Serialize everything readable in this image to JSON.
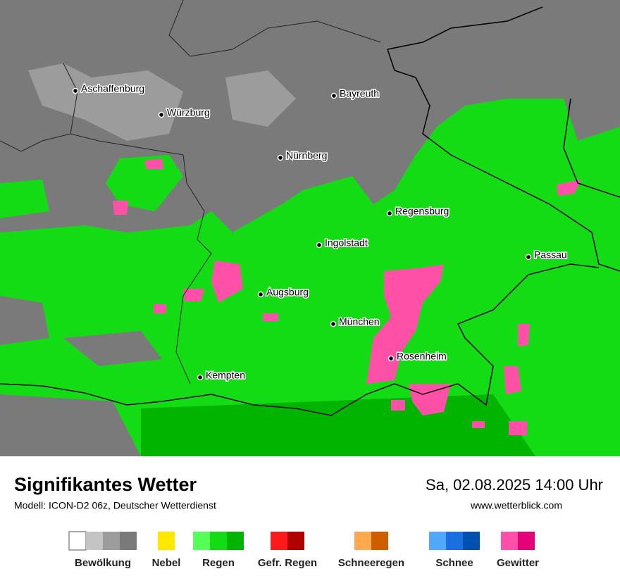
{
  "map": {
    "cities": [
      "Aschaffenburg",
      "Würzburg",
      "Bayreuth",
      "Nürnberg",
      "Regensburg",
      "Ingolstadt",
      "Passau",
      "Augsburg",
      "München",
      "Rosenheim",
      "Kempten"
    ]
  },
  "footer": {
    "title": "Signifikantes Wetter",
    "subtitle": "Modell: ICON-D2 06z, Deutscher Wetterdienst",
    "datetime": "Sa, 02.08.2025 14:00 Uhr",
    "website": "www.wetterblick.com"
  },
  "legend": [
    {
      "label": "Bewölkung",
      "colors": [
        "#ffffff",
        "#c4c4c4",
        "#9c9c9c",
        "#7a7a7a"
      ]
    },
    {
      "label": "Nebel",
      "colors": [
        "#ffe800"
      ]
    },
    {
      "label": "Regen",
      "colors": [
        "#55ff55",
        "#14dc14",
        "#00b400"
      ]
    },
    {
      "label": "Gefr. Regen",
      "colors": [
        "#ff1a1a",
        "#b00000"
      ]
    },
    {
      "label": "Schneeregen",
      "colors": [
        "#ffa850",
        "#cc5e00"
      ]
    },
    {
      "label": "Schnee",
      "colors": [
        "#50a8ff",
        "#1a70e0",
        "#0050b0"
      ]
    },
    {
      "label": "Gewitter",
      "colors": [
        "#ff50a8",
        "#e6007a"
      ]
    }
  ]
}
